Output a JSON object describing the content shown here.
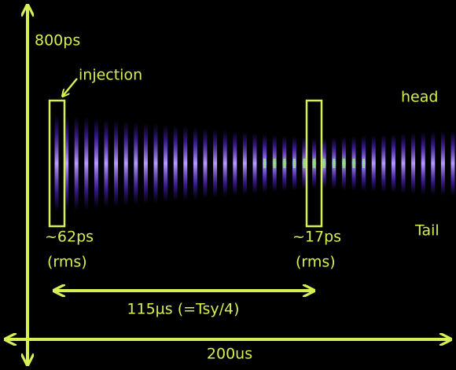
{
  "labels": {
    "vertical_axis": "800ps",
    "injection": "injection",
    "head": "head",
    "tail": "Tail",
    "left_width": "~62ps",
    "left_rms": "(rms)",
    "right_width": "~17ps",
    "right_rms": "(rms)",
    "interval": "115µs (=Tsy/4)",
    "horizontal_axis": "200us"
  }
}
